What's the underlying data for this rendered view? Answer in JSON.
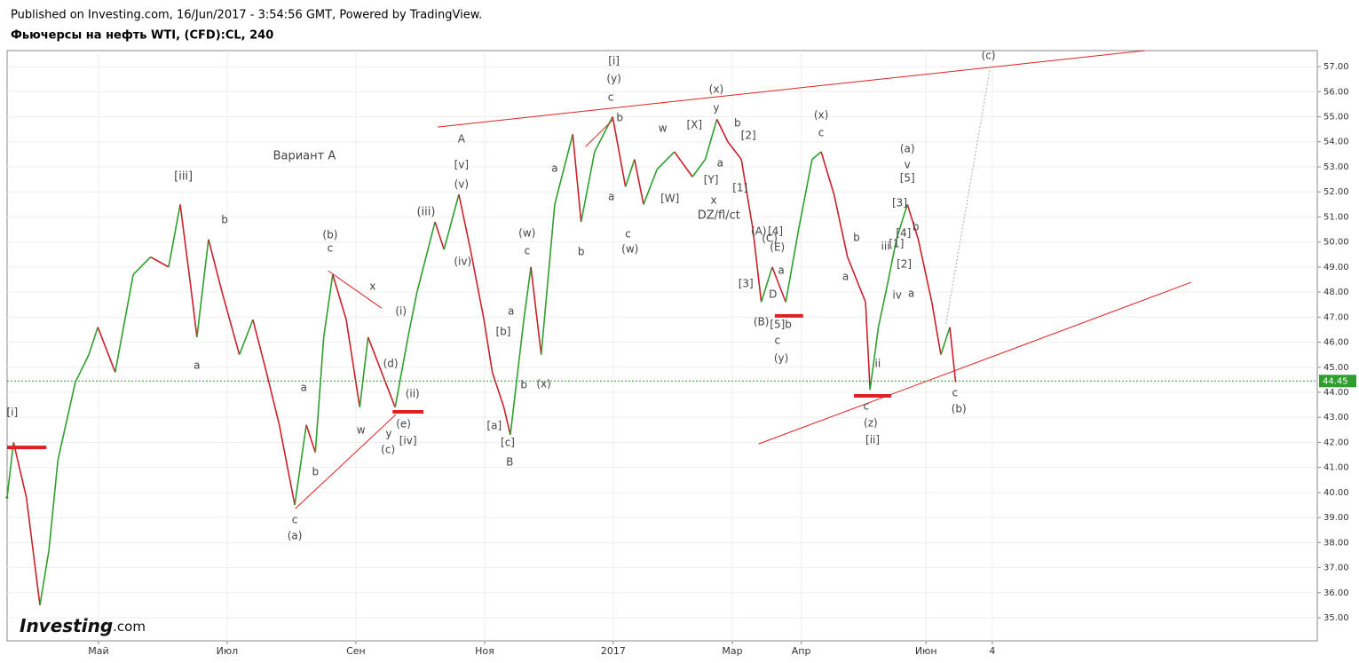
{
  "header": {
    "published": "Published on Investing.com, 16/Jun/2017 - 3:54:56 GMT, Powered by TradingView.",
    "symbol": "Фьючерсы на нефть WTI, (CFD):CL, 240"
  },
  "logo": {
    "brand": "Investing",
    "suffix": ".com"
  },
  "chart_data": {
    "type": "line",
    "up_color": "#2e9e2e",
    "down_color": "#c8202a",
    "grid": true,
    "xlim": [
      3.58,
      23.94
    ],
    "ylim": [
      34.08,
      57.64
    ],
    "xticks": [
      {
        "value": 5,
        "label": "Май"
      },
      {
        "value": 7,
        "label": "Июл"
      },
      {
        "value": 9,
        "label": "Сен"
      },
      {
        "value": 11,
        "label": "Ноя"
      },
      {
        "value": 13,
        "label": "2017"
      },
      {
        "value": 14.85,
        "label": "Мар"
      },
      {
        "value": 15.92,
        "label": "Апр"
      },
      {
        "value": 17.86,
        "label": "Июн"
      },
      {
        "value": 18.89,
        "label": "4"
      }
    ],
    "yticks": [
      {
        "value": 35,
        "label": "35.00"
      },
      {
        "value": 36,
        "label": "36.00"
      },
      {
        "value": 37,
        "label": "37.00"
      },
      {
        "value": 38,
        "label": "38.00"
      },
      {
        "value": 39,
        "label": "39.00"
      },
      {
        "value": 40,
        "label": "40.00"
      },
      {
        "value": 41,
        "label": "41.00"
      },
      {
        "value": 42,
        "label": "42.00"
      },
      {
        "value": 43,
        "label": "43.00"
      },
      {
        "value": 44,
        "label": "44.00"
      },
      {
        "value": 45,
        "label": "45.00"
      },
      {
        "value": 46,
        "label": "46.00"
      },
      {
        "value": 47,
        "label": "47.00"
      },
      {
        "value": 48,
        "label": "48.00"
      },
      {
        "value": 49,
        "label": "49.00"
      },
      {
        "value": 50,
        "label": "50.00"
      },
      {
        "value": 51,
        "label": "51.00"
      },
      {
        "value": 52,
        "label": "52.00"
      },
      {
        "value": 53,
        "label": "53.00"
      },
      {
        "value": 54,
        "label": "54.00"
      },
      {
        "value": 55,
        "label": "55.00"
      },
      {
        "value": 56,
        "label": "56.00"
      },
      {
        "value": 57,
        "label": "57.00"
      }
    ],
    "x": [
      3.58,
      3.68,
      3.88,
      4.09,
      4.23,
      4.37,
      4.64,
      4.85,
      4.99,
      5.26,
      5.54,
      5.81,
      6.09,
      6.27,
      6.43,
      6.53,
      6.71,
      6.92,
      7.19,
      7.4,
      7.61,
      7.81,
      8.05,
      8.23,
      8.37,
      8.5,
      8.64,
      8.85,
      9.06,
      9.19,
      9.4,
      9.61,
      9.81,
      9.95,
      10.23,
      10.37,
      10.6,
      10.78,
      10.99,
      11.12,
      11.3,
      11.4,
      11.61,
      11.72,
      11.88,
      12.09,
      12.37,
      12.5,
      12.71,
      12.99,
      13.19,
      13.33,
      13.47,
      13.68,
      13.95,
      14.23,
      14.43,
      14.61,
      14.78,
      14.99,
      15.17,
      15.3,
      15.47,
      15.68,
      15.88,
      16.09,
      16.23,
      16.43,
      16.64,
      16.92,
      16.99,
      17.12,
      17.26,
      17.4,
      17.57,
      17.74,
      17.95,
      18.09,
      18.23,
      18.32
    ],
    "values": [
      39.8,
      42.0,
      39.8,
      35.5,
      37.7,
      41.3,
      44.4,
      45.5,
      46.6,
      44.8,
      48.7,
      49.4,
      49.0,
      51.5,
      48.3,
      46.2,
      50.1,
      48.0,
      45.5,
      46.9,
      44.8,
      42.7,
      39.5,
      42.7,
      41.6,
      46.2,
      48.7,
      46.9,
      43.4,
      46.2,
      44.8,
      43.4,
      46.2,
      48.0,
      50.8,
      49.7,
      51.9,
      49.7,
      46.9,
      44.8,
      43.4,
      42.3,
      46.9,
      49.0,
      45.5,
      51.5,
      54.3,
      50.8,
      53.6,
      55.0,
      52.2,
      53.3,
      51.5,
      52.9,
      53.6,
      52.6,
      53.3,
      54.9,
      54.0,
      53.3,
      50.5,
      47.6,
      49.0,
      47.6,
      50.5,
      53.3,
      53.6,
      51.9,
      49.4,
      47.6,
      44.1,
      46.6,
      48.3,
      50.1,
      51.5,
      50.1,
      47.6,
      45.5,
      46.6,
      44.4
    ],
    "last_value": {
      "value": 44.45,
      "label": "44.45",
      "color": "#2e9e2e"
    },
    "trend_lines": [
      {
        "x": [
          10.27,
          21.26
        ],
        "y": [
          54.59,
          57.64
        ]
      },
      {
        "x": [
          15.26,
          21.98
        ],
        "y": [
          41.94,
          48.39
        ]
      },
      {
        "x": [
          8.57,
          9.4
        ],
        "y": [
          48.85,
          47.36
        ]
      },
      {
        "x": [
          8.06,
          9.62
        ],
        "y": [
          39.36,
          43.11
        ]
      },
      {
        "x": [
          12.57,
          12.99
        ],
        "y": [
          53.81,
          54.87
        ]
      }
    ],
    "levels": [
      {
        "x": [
          3.58,
          4.19
        ],
        "y": 41.8
      },
      {
        "x": [
          9.57,
          10.05
        ],
        "y": 43.22
      },
      {
        "x": [
          15.51,
          15.95
        ],
        "y": 47.05
      },
      {
        "x": [
          16.74,
          17.32
        ],
        "y": 43.86
      }
    ],
    "projection": {
      "x": [
        18.17,
        18.86
      ],
      "y": [
        46.73,
        57.0
      ]
    },
    "line_color": "#e02020",
    "annotations": [
      {
        "text": "[i]",
        "x": 3.66,
        "y": 43.18
      },
      {
        "text": "[iii]",
        "x": 6.32,
        "y": 52.61
      },
      {
        "text": "a",
        "x": 6.53,
        "y": 45.06
      },
      {
        "text": "b",
        "x": 6.96,
        "y": 50.87
      },
      {
        "text": "Вариант А",
        "x": 8.2,
        "y": 53.42
      },
      {
        "text": "(b)",
        "x": 8.6,
        "y": 50.27
      },
      {
        "text": "c",
        "x": 8.6,
        "y": 49.74
      },
      {
        "text": "x",
        "x": 9.26,
        "y": 48.21
      },
      {
        "text": "a",
        "x": 8.19,
        "y": 44.18
      },
      {
        "text": "b",
        "x": 8.37,
        "y": 40.81
      },
      {
        "text": "c",
        "x": 8.05,
        "y": 38.9
      },
      {
        "text": "(a)",
        "x": 8.05,
        "y": 38.26
      },
      {
        "text": "w",
        "x": 9.08,
        "y": 42.48
      },
      {
        "text": "(d)",
        "x": 9.54,
        "y": 45.13
      },
      {
        "text": "(e)",
        "x": 9.74,
        "y": 42.72
      },
      {
        "text": "y",
        "x": 9.51,
        "y": 42.33
      },
      {
        "text": "(c)",
        "x": 9.5,
        "y": 41.7
      },
      {
        "text": "[iv]",
        "x": 9.81,
        "y": 42.05
      },
      {
        "text": "(i)",
        "x": 9.7,
        "y": 47.22
      },
      {
        "text": "(ii)",
        "x": 9.88,
        "y": 43.93
      },
      {
        "text": "(iii)",
        "x": 10.09,
        "y": 51.19
      },
      {
        "text": "(iv)",
        "x": 10.66,
        "y": 49.21
      },
      {
        "text": "(v)",
        "x": 10.64,
        "y": 52.29
      },
      {
        "text": "[v]",
        "x": 10.64,
        "y": 53.07
      },
      {
        "text": "A",
        "x": 10.64,
        "y": 54.1
      },
      {
        "text": "[a]",
        "x": 11.15,
        "y": 42.65
      },
      {
        "text": "[c]",
        "x": 11.36,
        "y": 41.98
      },
      {
        "text": "B",
        "x": 11.39,
        "y": 41.2
      },
      {
        "text": "[b]",
        "x": 11.29,
        "y": 46.41
      },
      {
        "text": "a",
        "x": 11.41,
        "y": 47.22
      },
      {
        "text": "b",
        "x": 11.61,
        "y": 44.28
      },
      {
        "text": "(x)",
        "x": 11.92,
        "y": 44.32
      },
      {
        "text": "c",
        "x": 11.66,
        "y": 49.63
      },
      {
        "text": "(w)",
        "x": 11.66,
        "y": 50.34
      },
      {
        "text": "[i]",
        "x": 13.01,
        "y": 57.21
      },
      {
        "text": "(y)",
        "x": 13.01,
        "y": 56.5
      },
      {
        "text": "c",
        "x": 12.96,
        "y": 55.76
      },
      {
        "text": "b",
        "x": 13.1,
        "y": 54.95
      },
      {
        "text": "a",
        "x": 12.09,
        "y": 52.93
      },
      {
        "text": "b",
        "x": 12.5,
        "y": 49.6
      },
      {
        "text": "a",
        "x": 12.97,
        "y": 51.79
      },
      {
        "text": "c",
        "x": 13.23,
        "y": 50.3
      },
      {
        "text": "(w)",
        "x": 13.26,
        "y": 49.7
      },
      {
        "text": "w",
        "x": 13.77,
        "y": 54.52
      },
      {
        "text": "[X]",
        "x": 14.26,
        "y": 54.66
      },
      {
        "text": "[W]",
        "x": 13.88,
        "y": 51.72
      },
      {
        "text": "[Y]",
        "x": 14.52,
        "y": 52.47
      },
      {
        "text": "x",
        "x": 14.56,
        "y": 51.65
      },
      {
        "text": "DZ/fl/ct",
        "x": 14.64,
        "y": 51.05
      },
      {
        "text": "(x)",
        "x": 14.6,
        "y": 56.08
      },
      {
        "text": "y",
        "x": 14.6,
        "y": 55.34
      },
      {
        "text": "b",
        "x": 14.93,
        "y": 54.73
      },
      {
        "text": "[2]",
        "x": 15.1,
        "y": 54.24
      },
      {
        "text": "a",
        "x": 14.66,
        "y": 53.14
      },
      {
        "text": "[1]",
        "x": 14.97,
        "y": 52.15
      },
      {
        "text": "(A)",
        "x": 15.26,
        "y": 50.41
      },
      {
        "text": "[4]",
        "x": 15.52,
        "y": 50.41
      },
      {
        "text": "(C)",
        "x": 15.43,
        "y": 50.13
      },
      {
        "text": "(E)",
        "x": 15.55,
        "y": 49.77
      },
      {
        "text": "a",
        "x": 15.61,
        "y": 48.85
      },
      {
        "text": "[3]",
        "x": 15.06,
        "y": 48.32
      },
      {
        "text": "D",
        "x": 15.48,
        "y": 47.9
      },
      {
        "text": "(B)",
        "x": 15.3,
        "y": 46.8
      },
      {
        "text": "[5]",
        "x": 15.55,
        "y": 46.69
      },
      {
        "text": "b",
        "x": 15.72,
        "y": 46.69
      },
      {
        "text": "c",
        "x": 15.55,
        "y": 46.05
      },
      {
        "text": "(y)",
        "x": 15.61,
        "y": 45.35
      },
      {
        "text": "(x)",
        "x": 16.23,
        "y": 55.05
      },
      {
        "text": "c",
        "x": 16.23,
        "y": 54.34
      },
      {
        "text": "b",
        "x": 16.78,
        "y": 50.16
      },
      {
        "text": "a",
        "x": 16.61,
        "y": 48.6
      },
      {
        "text": "ii",
        "x": 17.11,
        "y": 45.13
      },
      {
        "text": "c",
        "x": 16.93,
        "y": 43.43
      },
      {
        "text": "(z)",
        "x": 17.0,
        "y": 42.76
      },
      {
        "text": "[ii]",
        "x": 17.03,
        "y": 42.09
      },
      {
        "text": "(a)",
        "x": 17.57,
        "y": 53.71
      },
      {
        "text": "v",
        "x": 17.57,
        "y": 53.07
      },
      {
        "text": "[5]",
        "x": 17.57,
        "y": 52.54
      },
      {
        "text": "[3]",
        "x": 17.45,
        "y": 51.54
      },
      {
        "text": "[4]",
        "x": 17.51,
        "y": 50.34
      },
      {
        "text": "iii",
        "x": 17.23,
        "y": 49.81
      },
      {
        "text": "[1]",
        "x": 17.4,
        "y": 49.92
      },
      {
        "text": "b",
        "x": 17.7,
        "y": 50.59
      },
      {
        "text": "[2]",
        "x": 17.52,
        "y": 49.1
      },
      {
        "text": "iv",
        "x": 17.41,
        "y": 47.86
      },
      {
        "text": "a",
        "x": 17.63,
        "y": 47.93
      },
      {
        "text": "c",
        "x": 18.31,
        "y": 43.96
      },
      {
        "text": "(b)",
        "x": 18.37,
        "y": 43.33
      },
      {
        "text": "(c)",
        "x": 18.83,
        "y": 57.43
      }
    ]
  }
}
